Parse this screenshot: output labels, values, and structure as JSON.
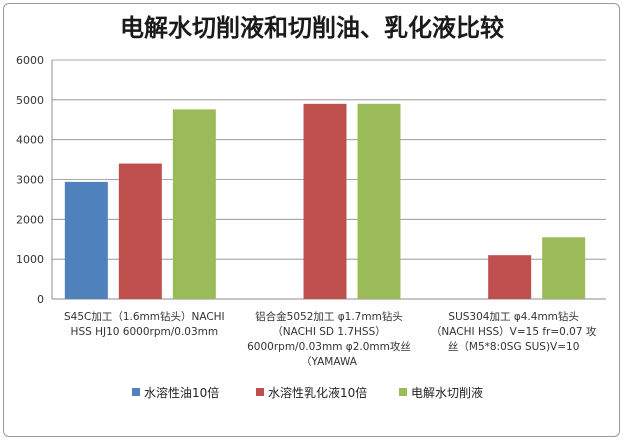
{
  "chart_data": {
    "type": "bar",
    "title": "电解水切削液和切削油、乳化液比较",
    "categories": [
      [
        "S45C加工（1.6mm钻头）NACHI",
        "HSS HJ10 6000rpm/0.03mm"
      ],
      [
        "铝合金5052加工 φ1.7mm钻头",
        "（NACHI SD 1.7HSS）",
        "6000rpm/0.03mm φ2.0mm攻丝",
        "（YAMAWA"
      ],
      [
        "SUS304加工 φ4.4mm钻头",
        "（NACHI HSS）V=15 fr=0.07 攻",
        "丝（M5*8:0SG SUS)V=10"
      ]
    ],
    "series": [
      {
        "name": "水溶性油10倍",
        "values": [
          2940,
          null,
          null
        ]
      },
      {
        "name": "水溶性乳化液10倍",
        "values": [
          3400,
          4900,
          1100
        ]
      },
      {
        "name": "电解水切削液",
        "values": [
          4760,
          4900,
          1550
        ]
      }
    ],
    "colors": [
      "#4f81bd",
      "#c0504d",
      "#9bbb59"
    ],
    "ylim": [
      0,
      6000
    ],
    "yticks": [
      0,
      1000,
      2000,
      3000,
      4000,
      5000,
      6000
    ],
    "xlabel": "",
    "ylabel": "",
    "grid": true,
    "legend_position": "bottom-left"
  }
}
